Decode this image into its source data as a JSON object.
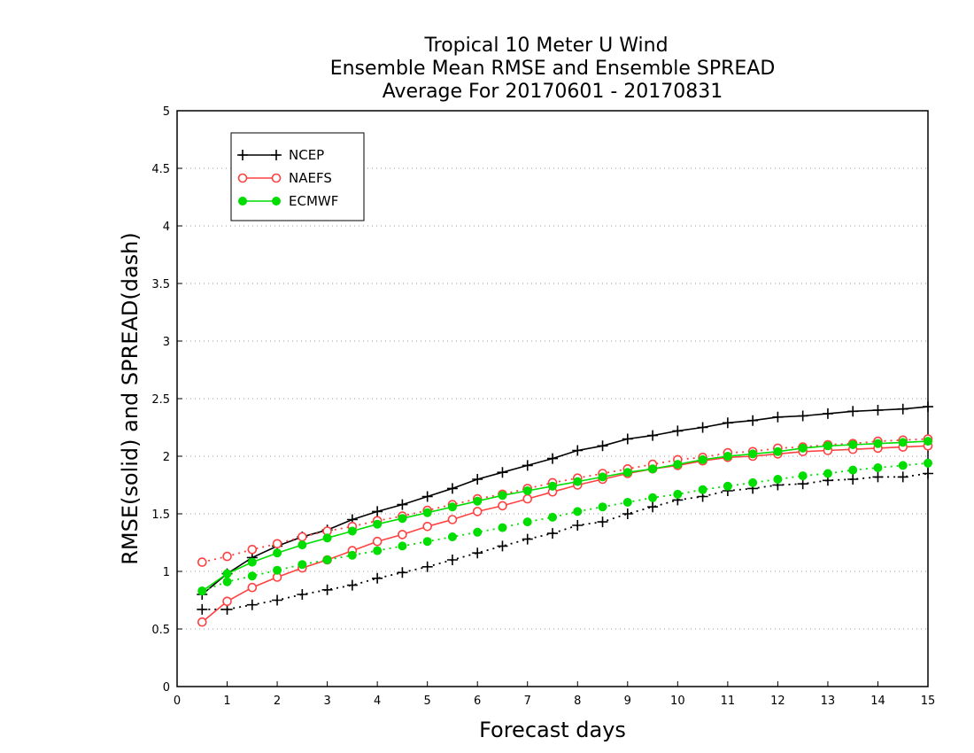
{
  "chart_data": {
    "type": "line",
    "title_lines": [
      "Tropical 10 Meter U Wind",
      "Ensemble Mean RMSE and Ensemble SPREAD",
      "Average For 20170601 - 20170831"
    ],
    "xlabel": "Forecast days",
    "ylabel": "RMSE(solid) and SPREAD(dash)",
    "xlim": [
      0,
      15
    ],
    "ylim": [
      0,
      5
    ],
    "x_ticks": [
      0,
      1,
      2,
      3,
      4,
      5,
      6,
      7,
      8,
      9,
      10,
      11,
      12,
      13,
      14,
      15
    ],
    "y_ticks": [
      0,
      0.5,
      1,
      1.5,
      2,
      2.5,
      3,
      3.5,
      4,
      4.5,
      5
    ],
    "grid": "horizontal dotted",
    "legend_position": "top-left",
    "x": [
      0.5,
      1,
      1.5,
      2,
      2.5,
      3,
      3.5,
      4,
      4.5,
      5,
      5.5,
      6,
      6.5,
      7,
      7.5,
      8,
      8.5,
      9,
      9.5,
      10,
      10.5,
      11,
      11.5,
      12,
      12.5,
      13,
      13.5,
      14,
      14.5,
      15
    ],
    "series": [
      {
        "name": "NCEP",
        "color": "#000000",
        "marker": "plus",
        "rmse": [
          0.8,
          0.98,
          1.12,
          1.22,
          1.3,
          1.36,
          1.45,
          1.52,
          1.58,
          1.65,
          1.72,
          1.8,
          1.86,
          1.92,
          1.98,
          2.05,
          2.09,
          2.15,
          2.18,
          2.22,
          2.25,
          2.29,
          2.31,
          2.34,
          2.35,
          2.37,
          2.39,
          2.4,
          2.41,
          2.43
        ],
        "spread": [
          0.67,
          0.67,
          0.71,
          0.75,
          0.8,
          0.84,
          0.88,
          0.94,
          0.99,
          1.04,
          1.1,
          1.16,
          1.22,
          1.28,
          1.33,
          1.4,
          1.43,
          1.5,
          1.56,
          1.62,
          1.65,
          1.7,
          1.72,
          1.75,
          1.76,
          1.79,
          1.8,
          1.82,
          1.82,
          1.85
        ]
      },
      {
        "name": "NAEFS",
        "color": "#ff4040",
        "marker": "open-circle",
        "rmse": [
          0.56,
          0.74,
          0.86,
          0.95,
          1.03,
          1.1,
          1.18,
          1.26,
          1.32,
          1.39,
          1.45,
          1.52,
          1.57,
          1.63,
          1.69,
          1.75,
          1.8,
          1.85,
          1.89,
          1.92,
          1.96,
          1.99,
          2.0,
          2.02,
          2.04,
          2.05,
          2.06,
          2.07,
          2.08,
          2.09
        ],
        "spread": [
          1.08,
          1.13,
          1.19,
          1.24,
          1.3,
          1.35,
          1.39,
          1.44,
          1.48,
          1.53,
          1.58,
          1.63,
          1.67,
          1.72,
          1.77,
          1.81,
          1.85,
          1.89,
          1.93,
          1.97,
          1.99,
          2.03,
          2.04,
          2.07,
          2.08,
          2.1,
          2.11,
          2.13,
          2.14,
          2.15
        ]
      },
      {
        "name": "ECMWF",
        "color": "#00dd00",
        "marker": "filled-circle",
        "rmse": [
          0.83,
          0.98,
          1.08,
          1.16,
          1.23,
          1.29,
          1.35,
          1.41,
          1.46,
          1.51,
          1.56,
          1.61,
          1.66,
          1.7,
          1.74,
          1.78,
          1.82,
          1.86,
          1.89,
          1.93,
          1.97,
          2.0,
          2.02,
          2.04,
          2.07,
          2.09,
          2.1,
          2.11,
          2.12,
          2.13
        ],
        "spread": [
          0.83,
          0.91,
          0.96,
          1.01,
          1.06,
          1.1,
          1.14,
          1.18,
          1.22,
          1.26,
          1.3,
          1.34,
          1.38,
          1.43,
          1.47,
          1.52,
          1.56,
          1.6,
          1.64,
          1.67,
          1.71,
          1.74,
          1.77,
          1.8,
          1.83,
          1.85,
          1.88,
          1.9,
          1.92,
          1.94
        ]
      }
    ]
  }
}
